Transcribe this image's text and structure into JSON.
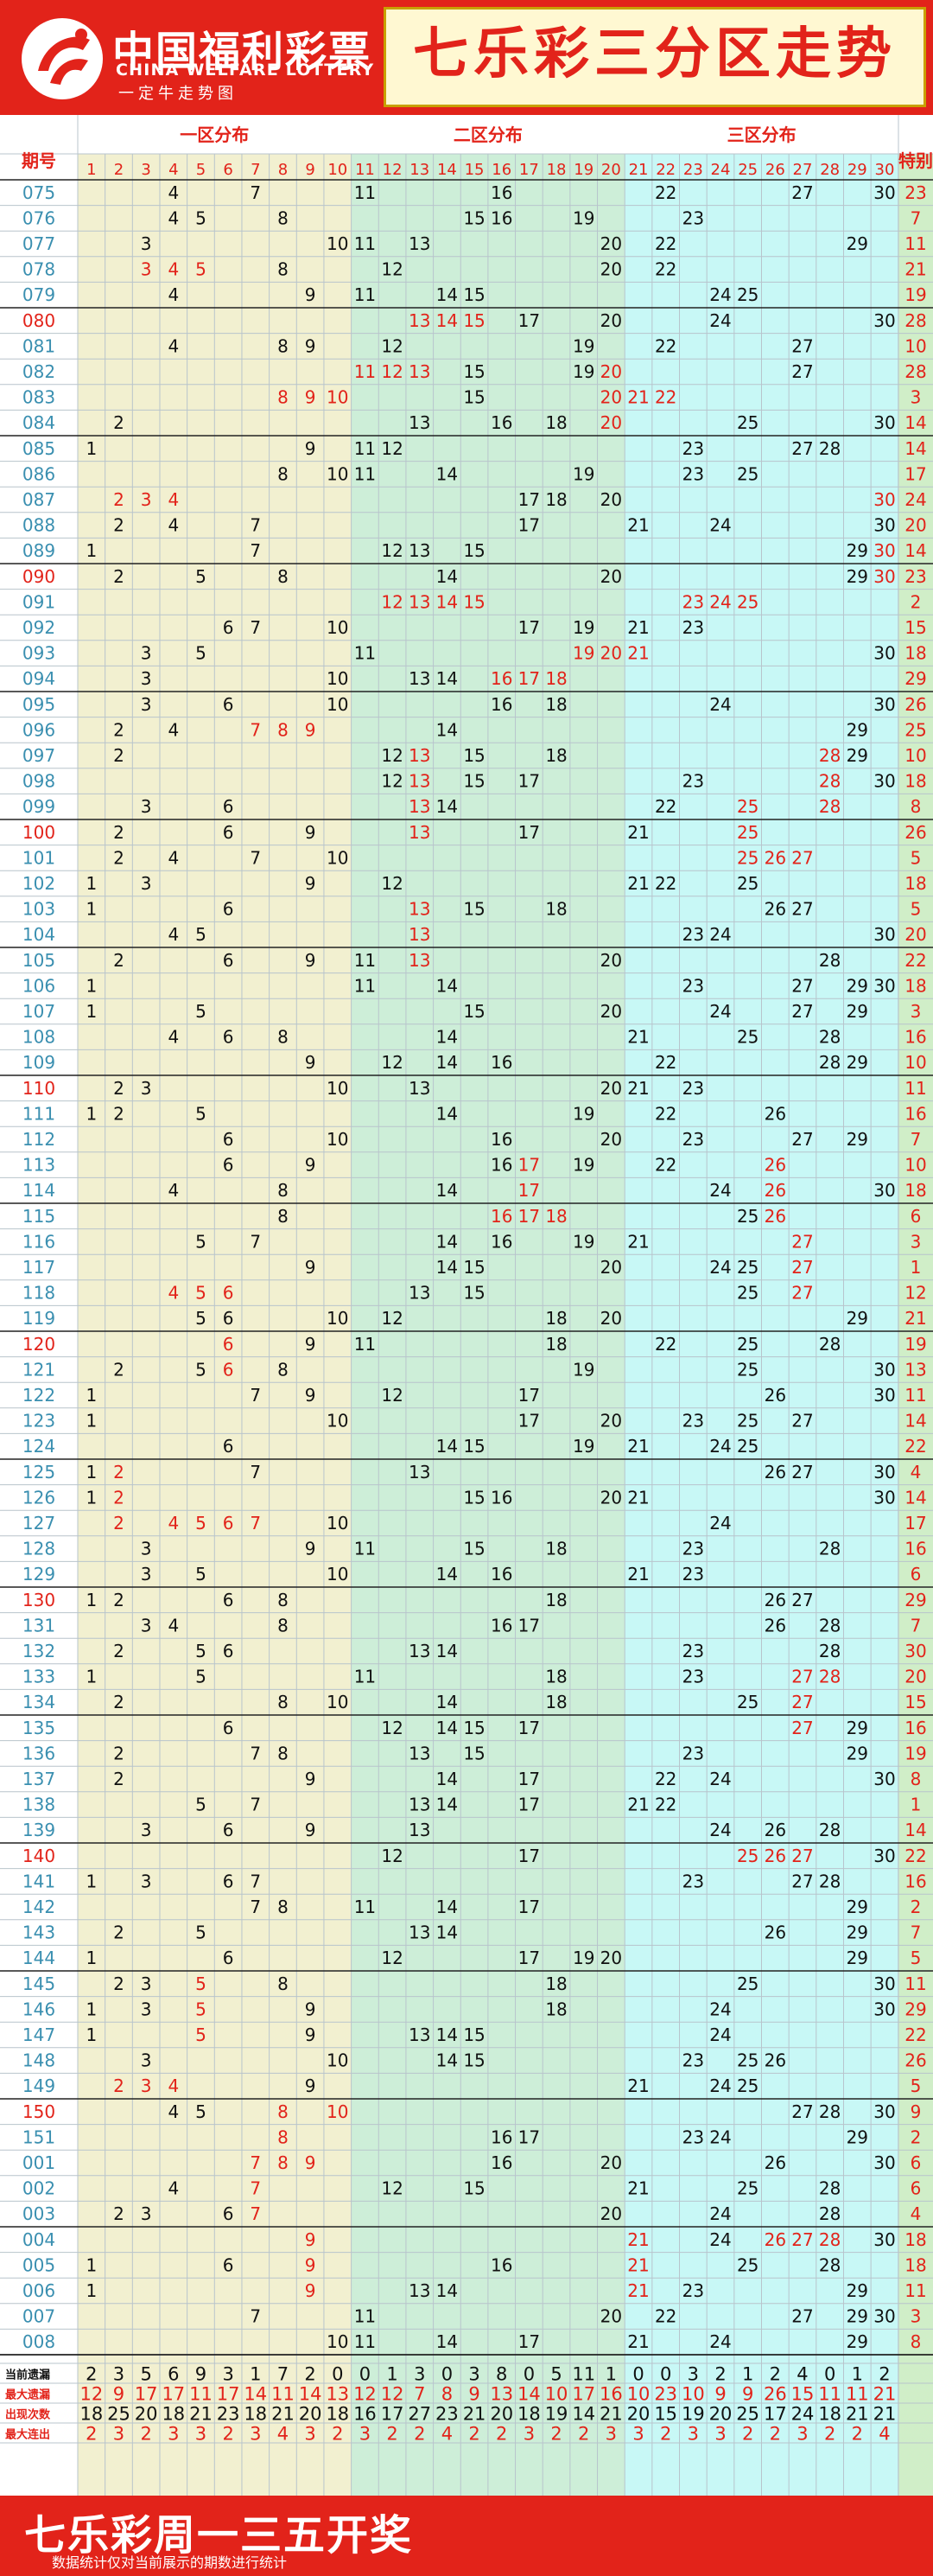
{
  "header": {
    "logo_cn": "中国福利彩票",
    "logo_en": "CHINA WELFARE LOTTERY",
    "logo_sub": "一定牛走势图",
    "title": "七乐彩三分区走势"
  },
  "table": {
    "period_label": "期号",
    "zone_labels": [
      "一区分布",
      "二区分布",
      "三区分布"
    ],
    "special_label": "特别",
    "columns": [
      "1",
      "2",
      "3",
      "4",
      "5",
      "6",
      "7",
      "8",
      "9",
      "10",
      "11",
      "12",
      "13",
      "14",
      "15",
      "16",
      "17",
      "18",
      "19",
      "20",
      "21",
      "22",
      "23",
      "24",
      "25",
      "26",
      "27",
      "28",
      "29",
      "30"
    ]
  },
  "draws": [
    {
      "p": "075",
      "n": [
        4,
        7,
        11,
        16,
        22,
        27,
        30
      ],
      "s": 23,
      "hot": []
    },
    {
      "p": "076",
      "n": [
        4,
        5,
        8,
        15,
        16,
        19,
        23
      ],
      "s": 7,
      "hot": []
    },
    {
      "p": "077",
      "n": [
        3,
        10,
        11,
        13,
        20,
        22,
        29
      ],
      "s": 11,
      "hot": []
    },
    {
      "p": "078",
      "n": [
        3,
        4,
        5,
        8,
        12,
        20,
        22
      ],
      "s": 21,
      "hot": [
        3,
        4,
        5
      ]
    },
    {
      "p": "079",
      "n": [
        4,
        9,
        11,
        14,
        15,
        24,
        25
      ],
      "s": 19,
      "hot": []
    },
    {
      "p": "080",
      "n": [
        13,
        14,
        15,
        17,
        20,
        24,
        30
      ],
      "s": 28,
      "hot": [
        13,
        14,
        15
      ],
      "hl": true
    },
    {
      "p": "081",
      "n": [
        4,
        8,
        9,
        12,
        19,
        22,
        27
      ],
      "s": 10,
      "hot": []
    },
    {
      "p": "082",
      "n": [
        11,
        12,
        13,
        15,
        19,
        20,
        27
      ],
      "s": 28,
      "hot": [
        11,
        12,
        13,
        20
      ]
    },
    {
      "p": "083",
      "n": [
        8,
        9,
        10,
        15,
        20,
        21,
        22
      ],
      "s": 3,
      "hot": [
        8,
        9,
        10,
        20,
        21,
        22
      ]
    },
    {
      "p": "084",
      "n": [
        2,
        13,
        16,
        18,
        20,
        25,
        30
      ],
      "s": 14,
      "hot": [
        20
      ]
    },
    {
      "p": "085",
      "n": [
        1,
        9,
        11,
        12,
        23,
        27,
        28
      ],
      "s": 14,
      "hot": []
    },
    {
      "p": "086",
      "n": [
        8,
        10,
        11,
        14,
        19,
        23,
        25
      ],
      "s": 17,
      "hot": []
    },
    {
      "p": "087",
      "n": [
        2,
        3,
        4,
        17,
        18,
        20,
        30
      ],
      "s": 24,
      "hot": [
        2,
        3,
        4,
        30
      ]
    },
    {
      "p": "088",
      "n": [
        2,
        4,
        7,
        17,
        21,
        24,
        30
      ],
      "s": 20,
      "hot": []
    },
    {
      "p": "089",
      "n": [
        1,
        7,
        12,
        13,
        15,
        29,
        30
      ],
      "s": 14,
      "hot": [
        30
      ]
    },
    {
      "p": "090",
      "n": [
        2,
        5,
        8,
        14,
        20,
        29,
        30
      ],
      "s": 23,
      "hot": [
        30
      ],
      "hl": true
    },
    {
      "p": "091",
      "n": [
        12,
        13,
        14,
        15,
        23,
        24,
        25
      ],
      "s": 2,
      "hot": [
        12,
        13,
        14,
        15,
        23,
        24,
        25
      ]
    },
    {
      "p": "092",
      "n": [
        6,
        7,
        10,
        17,
        19,
        21,
        23
      ],
      "s": 15,
      "hot": []
    },
    {
      "p": "093",
      "n": [
        3,
        5,
        11,
        19,
        20,
        21,
        30
      ],
      "s": 18,
      "hot": [
        19,
        20,
        21
      ]
    },
    {
      "p": "094",
      "n": [
        3,
        10,
        13,
        14,
        16,
        17,
        18
      ],
      "s": 29,
      "hot": [
        16,
        17,
        18
      ]
    },
    {
      "p": "095",
      "n": [
        3,
        6,
        10,
        16,
        18,
        24,
        30
      ],
      "s": 26,
      "hot": []
    },
    {
      "p": "096",
      "n": [
        2,
        4,
        7,
        8,
        9,
        14,
        29
      ],
      "s": 25,
      "hot": [
        7,
        8,
        9
      ]
    },
    {
      "p": "097",
      "n": [
        2,
        12,
        13,
        15,
        18,
        28,
        29
      ],
      "s": 10,
      "hot": [
        13,
        28
      ]
    },
    {
      "p": "098",
      "n": [
        12,
        13,
        15,
        17,
        23,
        28,
        30
      ],
      "s": 18,
      "hot": [
        13,
        28
      ]
    },
    {
      "p": "099",
      "n": [
        3,
        6,
        13,
        14,
        22,
        25,
        28
      ],
      "s": 8,
      "hot": [
        13,
        25,
        28
      ]
    },
    {
      "p": "100",
      "n": [
        2,
        6,
        9,
        13,
        17,
        21,
        25
      ],
      "s": 26,
      "hot": [
        13,
        25
      ],
      "hl": true
    },
    {
      "p": "101",
      "n": [
        2,
        4,
        7,
        10,
        25,
        26,
        27
      ],
      "s": 5,
      "hot": [
        25,
        26,
        27
      ]
    },
    {
      "p": "102",
      "n": [
        1,
        3,
        9,
        12,
        21,
        22,
        25
      ],
      "s": 18,
      "hot": []
    },
    {
      "p": "103",
      "n": [
        1,
        6,
        13,
        15,
        18,
        26,
        27
      ],
      "s": 5,
      "hot": [
        13
      ]
    },
    {
      "p": "104",
      "n": [
        4,
        5,
        13,
        23,
        24,
        30
      ],
      "s": 20,
      "hot": [
        13
      ]
    },
    {
      "p": "105",
      "n": [
        2,
        6,
        9,
        11,
        13,
        20,
        28
      ],
      "s": 22,
      "hot": [
        13
      ]
    },
    {
      "p": "106",
      "n": [
        1,
        11,
        14,
        23,
        27,
        29,
        30
      ],
      "s": 18,
      "hot": []
    },
    {
      "p": "107",
      "n": [
        1,
        5,
        15,
        20,
        24,
        27,
        29
      ],
      "s": 3,
      "hot": []
    },
    {
      "p": "108",
      "n": [
        4,
        6,
        8,
        14,
        21,
        25,
        28
      ],
      "s": 16,
      "hot": []
    },
    {
      "p": "109",
      "n": [
        9,
        12,
        14,
        16,
        22,
        28,
        29
      ],
      "s": 10,
      "hot": []
    },
    {
      "p": "110",
      "n": [
        2,
        3,
        10,
        13,
        20,
        21,
        23
      ],
      "s": 11,
      "hot": [],
      "hl": true
    },
    {
      "p": "111",
      "n": [
        1,
        2,
        5,
        14,
        19,
        22,
        26
      ],
      "s": 16,
      "hot": []
    },
    {
      "p": "112",
      "n": [
        6,
        10,
        16,
        20,
        23,
        27,
        29
      ],
      "s": 7,
      "hot": []
    },
    {
      "p": "113",
      "n": [
        6,
        9,
        16,
        17,
        19,
        22,
        26
      ],
      "s": 10,
      "hot": [
        17,
        26
      ]
    },
    {
      "p": "114",
      "n": [
        4,
        8,
        14,
        17,
        24,
        26,
        30
      ],
      "s": 18,
      "hot": [
        17,
        26
      ]
    },
    {
      "p": "115",
      "n": [
        8,
        16,
        17,
        18,
        25,
        26
      ],
      "s": 6,
      "hot": [
        16,
        17,
        18,
        26
      ]
    },
    {
      "p": "116",
      "n": [
        5,
        7,
        14,
        16,
        19,
        21,
        27
      ],
      "s": 3,
      "hot": [
        27
      ]
    },
    {
      "p": "117",
      "n": [
        9,
        14,
        15,
        20,
        24,
        25,
        27
      ],
      "s": 1,
      "hot": [
        27
      ]
    },
    {
      "p": "118",
      "n": [
        4,
        5,
        6,
        13,
        15,
        25,
        27
      ],
      "s": 12,
      "hot": [
        4,
        5,
        6,
        27
      ]
    },
    {
      "p": "119",
      "n": [
        5,
        6,
        10,
        12,
        18,
        20,
        29
      ],
      "s": 21,
      "hot": []
    },
    {
      "p": "120",
      "n": [
        6,
        9,
        11,
        18,
        22,
        25,
        28
      ],
      "s": 19,
      "hot": [
        6
      ],
      "hl": true
    },
    {
      "p": "121",
      "n": [
        2,
        5,
        6,
        8,
        19,
        25,
        30
      ],
      "s": 13,
      "hot": [
        6
      ]
    },
    {
      "p": "122",
      "n": [
        1,
        7,
        9,
        12,
        17,
        26,
        30
      ],
      "s": 11,
      "hot": []
    },
    {
      "p": "123",
      "n": [
        1,
        10,
        17,
        20,
        23,
        25,
        27
      ],
      "s": 14,
      "hot": []
    },
    {
      "p": "124",
      "n": [
        6,
        14,
        15,
        19,
        21,
        24,
        25
      ],
      "s": 22,
      "hot": []
    },
    {
      "p": "125",
      "n": [
        1,
        2,
        7,
        13,
        26,
        27,
        30
      ],
      "s": 4,
      "hot": [
        2
      ]
    },
    {
      "p": "126",
      "n": [
        1,
        2,
        15,
        16,
        20,
        21,
        30
      ],
      "s": 14,
      "hot": [
        2
      ]
    },
    {
      "p": "127",
      "n": [
        2,
        4,
        5,
        6,
        7,
        10,
        24
      ],
      "s": 17,
      "hot": [
        2,
        4,
        5,
        6,
        7
      ]
    },
    {
      "p": "128",
      "n": [
        3,
        9,
        11,
        15,
        18,
        23,
        28
      ],
      "s": 16,
      "hot": []
    },
    {
      "p": "129",
      "n": [
        3,
        5,
        10,
        14,
        16,
        21,
        23
      ],
      "s": 6,
      "hot": []
    },
    {
      "p": "130",
      "n": [
        1,
        2,
        6,
        8,
        18,
        26,
        27
      ],
      "s": 29,
      "hot": [],
      "hl": true
    },
    {
      "p": "131",
      "n": [
        3,
        4,
        8,
        16,
        17,
        26,
        28
      ],
      "s": 7,
      "hot": []
    },
    {
      "p": "132",
      "n": [
        2,
        5,
        6,
        13,
        14,
        23,
        28
      ],
      "s": 30,
      "hot": []
    },
    {
      "p": "133",
      "n": [
        1,
        5,
        11,
        18,
        23,
        27,
        28
      ],
      "s": 20,
      "hot": [
        27,
        28
      ]
    },
    {
      "p": "134",
      "n": [
        2,
        8,
        10,
        14,
        18,
        25,
        27
      ],
      "s": 15,
      "hot": [
        27
      ]
    },
    {
      "p": "135",
      "n": [
        6,
        12,
        14,
        15,
        17,
        27,
        29
      ],
      "s": 16,
      "hot": [
        27
      ]
    },
    {
      "p": "136",
      "n": [
        2,
        7,
        8,
        13,
        15,
        23,
        29
      ],
      "s": 19,
      "hot": []
    },
    {
      "p": "137",
      "n": [
        2,
        9,
        14,
        17,
        22,
        24,
        30
      ],
      "s": 8,
      "hot": []
    },
    {
      "p": "138",
      "n": [
        5,
        7,
        13,
        14,
        17,
        21,
        22
      ],
      "s": 1,
      "hot": []
    },
    {
      "p": "139",
      "n": [
        3,
        6,
        9,
        13,
        24,
        26,
        28
      ],
      "s": 14,
      "hot": []
    },
    {
      "p": "140",
      "n": [
        12,
        17,
        25,
        26,
        27,
        30
      ],
      "s": 22,
      "hot": [
        25,
        26,
        27
      ],
      "hl": true
    },
    {
      "p": "141",
      "n": [
        1,
        3,
        6,
        7,
        23,
        27,
        28
      ],
      "s": 16,
      "hot": []
    },
    {
      "p": "142",
      "n": [
        7,
        8,
        11,
        14,
        17,
        29
      ],
      "s": 2,
      "hot": []
    },
    {
      "p": "143",
      "n": [
        2,
        5,
        13,
        14,
        26,
        29
      ],
      "s": 7,
      "hot": []
    },
    {
      "p": "144",
      "n": [
        1,
        6,
        12,
        17,
        19,
        20,
        29
      ],
      "s": 5,
      "hot": []
    },
    {
      "p": "145",
      "n": [
        2,
        3,
        5,
        8,
        18,
        25,
        30
      ],
      "s": 11,
      "hot": [
        5
      ]
    },
    {
      "p": "146",
      "n": [
        1,
        3,
        5,
        9,
        18,
        24,
        30
      ],
      "s": 29,
      "hot": [
        5
      ]
    },
    {
      "p": "147",
      "n": [
        1,
        5,
        9,
        13,
        14,
        15,
        24
      ],
      "s": 22,
      "hot": [
        5
      ]
    },
    {
      "p": "148",
      "n": [
        3,
        10,
        14,
        15,
        23,
        25,
        26
      ],
      "s": 26,
      "hot": []
    },
    {
      "p": "149",
      "n": [
        2,
        3,
        4,
        9,
        21,
        24,
        25
      ],
      "s": 5,
      "hot": [
        2,
        3,
        4
      ]
    },
    {
      "p": "150",
      "n": [
        4,
        5,
        8,
        10,
        27,
        28,
        30
      ],
      "s": 9,
      "hot": [
        8,
        10
      ],
      "hl": true
    },
    {
      "p": "151",
      "n": [
        8,
        16,
        17,
        23,
        24,
        29
      ],
      "s": 2,
      "hot": [
        8
      ]
    },
    {
      "p": "001",
      "n": [
        7,
        8,
        9,
        16,
        20,
        26,
        30
      ],
      "s": 6,
      "hot": [
        7,
        8,
        9
      ]
    },
    {
      "p": "002",
      "n": [
        4,
        7,
        12,
        15,
        21,
        25,
        28
      ],
      "s": 6,
      "hot": [
        7
      ]
    },
    {
      "p": "003",
      "n": [
        2,
        3,
        6,
        7,
        20,
        24,
        28
      ],
      "s": 4,
      "hot": [
        7
      ]
    },
    {
      "p": "004",
      "n": [
        9,
        21,
        24,
        26,
        27,
        28,
        30
      ],
      "s": 18,
      "hot": [
        9,
        21,
        26,
        27,
        28
      ]
    },
    {
      "p": "005",
      "n": [
        1,
        6,
        9,
        16,
        21,
        25,
        28
      ],
      "s": 18,
      "hot": [
        9,
        21
      ]
    },
    {
      "p": "006",
      "n": [
        1,
        9,
        13,
        14,
        21,
        23,
        29
      ],
      "s": 11,
      "hot": [
        9,
        21
      ]
    },
    {
      "p": "007",
      "n": [
        7,
        11,
        20,
        22,
        27,
        29,
        30
      ],
      "s": 3,
      "hot": []
    },
    {
      "p": "008",
      "n": [
        10,
        11,
        14,
        17,
        21,
        24,
        29
      ],
      "s": 8,
      "hot": []
    }
  ],
  "stats": [
    {
      "label": "当前遗漏",
      "values": [
        2,
        3,
        5,
        6,
        9,
        3,
        1,
        7,
        2,
        0,
        0,
        1,
        3,
        0,
        3,
        8,
        0,
        5,
        11,
        1,
        0,
        0,
        3,
        2,
        1,
        2,
        4,
        0,
        1,
        2
      ],
      "color": "#111111"
    },
    {
      "label": "最大遗漏",
      "values": [
        12,
        9,
        17,
        17,
        11,
        17,
        14,
        11,
        14,
        13,
        12,
        12,
        7,
        8,
        9,
        13,
        14,
        10,
        17,
        16,
        10,
        23,
        10,
        9,
        9,
        26,
        15,
        11,
        11,
        21
      ],
      "color": "#e2231a"
    },
    {
      "label": "出现次数",
      "values": [
        18,
        25,
        20,
        18,
        21,
        23,
        18,
        21,
        20,
        18,
        16,
        17,
        27,
        23,
        21,
        20,
        18,
        19,
        14,
        21,
        20,
        15,
        19,
        20,
        25,
        17,
        24,
        18,
        21,
        21
      ],
      "color": "#111111"
    },
    {
      "label": "最大连出",
      "values": [
        2,
        3,
        2,
        3,
        3,
        2,
        3,
        4,
        3,
        2,
        3,
        2,
        2,
        4,
        2,
        2,
        3,
        2,
        2,
        3,
        3,
        2,
        3,
        3,
        2,
        2,
        3,
        2,
        2,
        4
      ],
      "color": "#e2231a"
    }
  ],
  "footer": {
    "title": "七乐彩周一三五开奖",
    "note": "数据统计仅对当前展示的期数进行统计"
  },
  "colors": {
    "brand_red": "#e2231a",
    "zone1_bg": "#f2f0d0",
    "zone2_bg": "#cdeed8",
    "zone3_bg": "#c8f8f6",
    "special_bg": "#d0eec8",
    "period_text": "#3a8fb0"
  }
}
